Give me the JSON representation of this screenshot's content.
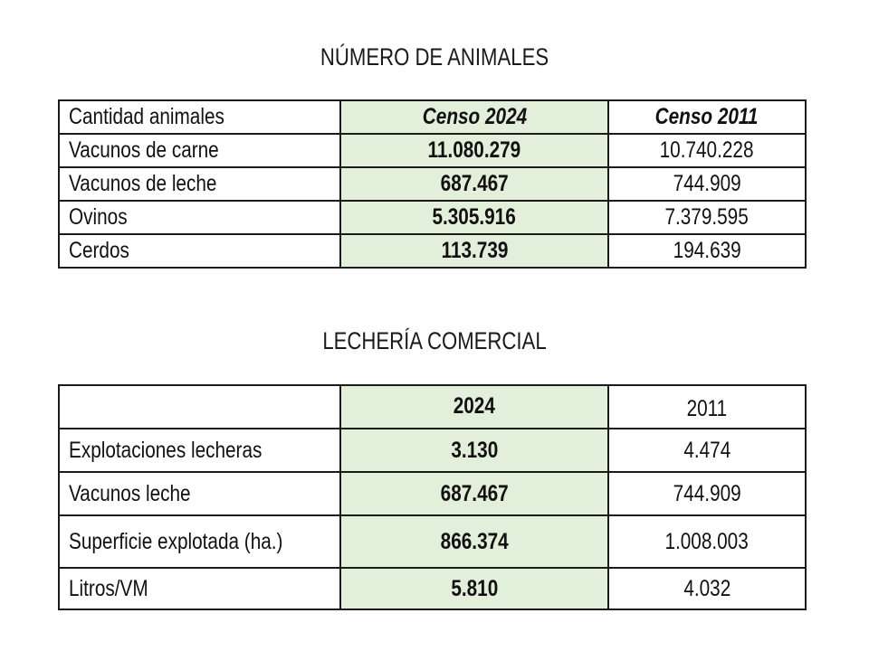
{
  "table1": {
    "title": "NÚMERO DE ANIMALES",
    "header": [
      "Cantidad animales",
      "Censo 2024",
      "Censo 2011"
    ],
    "rows": [
      [
        "Vacunos de carne",
        "11.080.279",
        "10.740.228"
      ],
      [
        "Vacunos de leche",
        "687.467",
        "744.909"
      ],
      [
        "Ovinos",
        "5.305.916",
        "7.379.595"
      ],
      [
        "Cerdos",
        "113.739",
        "194.639"
      ]
    ]
  },
  "table2": {
    "title": "LECHERÍA COMERCIAL",
    "header": [
      "",
      "2024",
      "2011"
    ],
    "rows": [
      [
        "Explotaciones lecheras",
        "3.130",
        "4.474"
      ],
      [
        "Vacunos leche",
        "687.467",
        "744.909"
      ],
      [
        "Superficie explotada (ha.)",
        "866.374",
        "1.008.003"
      ],
      [
        "Litros/VM",
        "5.810",
        "4.032"
      ]
    ]
  },
  "colors": {
    "highlight": "#e2efda",
    "border": "#1a1a1a"
  }
}
